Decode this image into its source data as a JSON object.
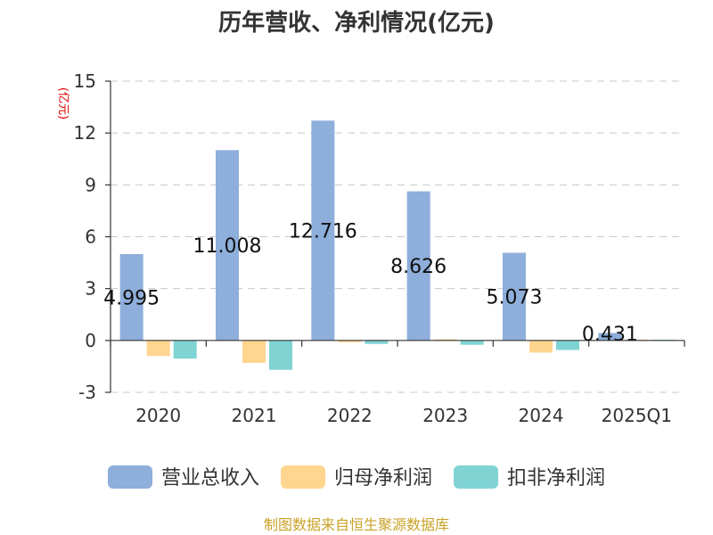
{
  "chart_data": {
    "type": "bar",
    "title": "历年营收、净利情况(亿元)",
    "ylabel": "(亿元)",
    "categories": [
      "2020",
      "2021",
      "2022",
      "2023",
      "2024",
      "2025Q1"
    ],
    "series": [
      {
        "name": "营业总收入",
        "color": "#8eaedb",
        "values": [
          4.995,
          11.008,
          12.716,
          8.626,
          5.073,
          0.431
        ]
      },
      {
        "name": "归母净利润",
        "color": "#ffd58f",
        "values": [
          -0.9,
          -1.3,
          -0.1,
          0.07,
          -0.7,
          0.05
        ]
      },
      {
        "name": "扣非净利润",
        "color": "#7fd3d3",
        "values": [
          -1.05,
          -1.7,
          -0.2,
          -0.25,
          -0.55,
          0.04
        ]
      }
    ],
    "data_labels": [
      "4.995",
      "11.008",
      "12.716",
      "8.626",
      "5.073",
      "0.431"
    ],
    "ylim": [
      -3,
      15
    ],
    "yticks": [
      "-3",
      "0",
      "3",
      "6",
      "9",
      "12",
      "15"
    ],
    "grid": true,
    "legend_position": "bottom"
  },
  "source": "制图数据来自恒生聚源数据库"
}
